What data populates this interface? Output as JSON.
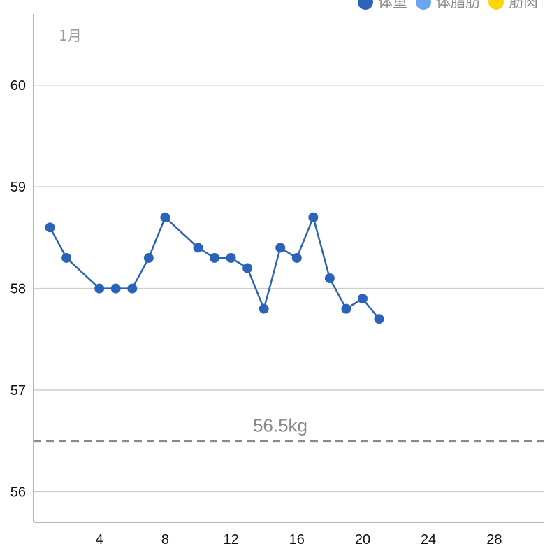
{
  "chart_data": {
    "type": "line",
    "month_label": "1月",
    "legend_position": "top-right",
    "grid": true,
    "xlim": [
      0,
      31
    ],
    "ylim": [
      55.7,
      60.7
    ],
    "xticks": [
      4,
      8,
      12,
      16,
      20,
      24,
      28
    ],
    "yticks": [
      56,
      57,
      58,
      59,
      60
    ],
    "series": [
      {
        "name": "体重",
        "color": "#2a63b7",
        "x": [
          1,
          2,
          4,
          5,
          6,
          7,
          8,
          10,
          11,
          12,
          13,
          14,
          15,
          16,
          17,
          18,
          19,
          20,
          21
        ],
        "values": [
          58.6,
          58.3,
          58.0,
          58.0,
          58.0,
          58.3,
          58.7,
          58.4,
          58.3,
          58.3,
          58.2,
          57.8,
          58.4,
          58.3,
          58.7,
          58.1,
          57.8,
          57.9,
          57.7
        ]
      },
      {
        "name": "体脂肪",
        "color": "#6aa6ef",
        "x": [],
        "values": []
      },
      {
        "name": "筋肉",
        "color": "#ffd50a",
        "x": [],
        "values": []
      }
    ],
    "target_line": {
      "value": 56.5,
      "label": "56.5kg",
      "color": "#8a8a8a"
    }
  }
}
